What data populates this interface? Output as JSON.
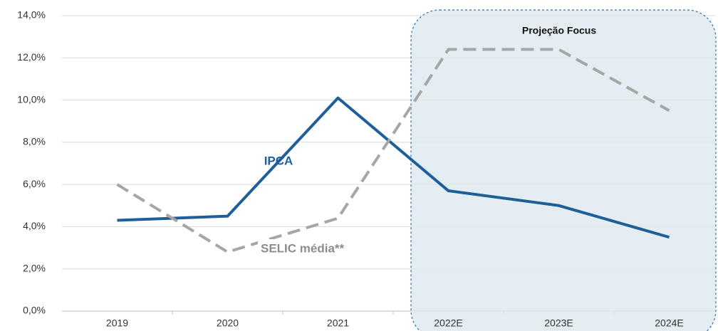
{
  "chart_data": {
    "type": "line",
    "categories": [
      "2019",
      "2020",
      "2021",
      "2022E",
      "2023E",
      "2024E"
    ],
    "series": [
      {
        "name": "IPCA",
        "color": "#1f5f99",
        "dashed": false,
        "values": [
          4.3,
          4.5,
          10.1,
          5.7,
          5.0,
          3.5
        ]
      },
      {
        "name": "SELIC média**",
        "color": "#a6a6a6",
        "dashed": true,
        "values": [
          6.0,
          2.8,
          4.4,
          12.4,
          12.4,
          9.5
        ]
      }
    ],
    "annotation": "Projeção Focus",
    "ylim": [
      0,
      14
    ],
    "yticks": [
      {
        "value": 0,
        "label": "0,0%"
      },
      {
        "value": 2,
        "label": "2,0%"
      },
      {
        "value": 4,
        "label": "4,0%"
      },
      {
        "value": 6,
        "label": "6,0%"
      },
      {
        "value": 8,
        "label": "8,0%"
      },
      {
        "value": 10,
        "label": "10,0%"
      },
      {
        "value": 12,
        "label": "12,0%"
      },
      {
        "value": 14,
        "label": "14,0%"
      }
    ],
    "grid": true
  }
}
